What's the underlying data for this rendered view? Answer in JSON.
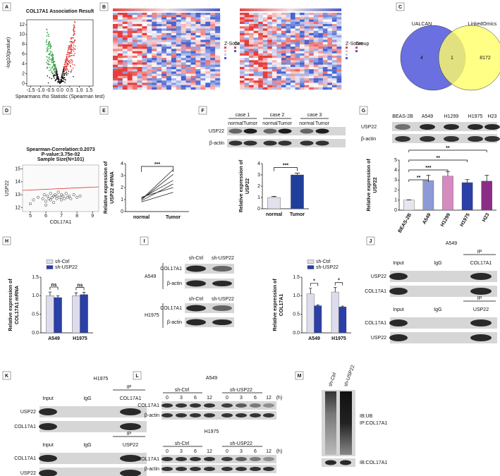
{
  "panels": [
    "A",
    "B",
    "C",
    "D",
    "E",
    "F",
    "G",
    "H",
    "I",
    "J",
    "K",
    "L",
    "M"
  ],
  "heatmap": {
    "legend_labels": [
      "Z-Score",
      "Group"
    ]
  },
  "venn": {
    "sets": [
      "UALCAN",
      "LinkedOmics"
    ],
    "counts": [
      4,
      1,
      8172
    ]
  },
  "blots": {
    "F": {
      "cases": [
        "case 1",
        "case 2",
        "case 3"
      ],
      "groups": [
        "normal",
        "Tumor"
      ],
      "rows": [
        "USP22",
        "β-actin"
      ]
    },
    "G": {
      "lines": [
        "BEAS-2B",
        "A549",
        "H1299",
        "H1975",
        "H23"
      ],
      "rows": [
        "USP22",
        "β-actin"
      ]
    },
    "I": {
      "groups": [
        "sh-Ctrl",
        "sh-USP22"
      ],
      "cells": [
        "A549",
        "H1975"
      ],
      "rows": [
        "COL17A1",
        "β-actin"
      ]
    },
    "J": {
      "title": "A549",
      "blocks": [
        {
          "ip": "IP",
          "lanes": [
            "Input",
            "IgG",
            "COL17A1"
          ],
          "rows": [
            "USP22",
            "COL17A1"
          ]
        },
        {
          "ip": "IP",
          "lanes": [
            "Input",
            "IgG",
            "USP22"
          ],
          "rows": [
            "COL17A1",
            "USP22"
          ]
        }
      ]
    },
    "K": {
      "title": "H1975",
      "blocks": [
        {
          "ip": "IP",
          "lanes": [
            "Input",
            "IgG",
            "COL17A1"
          ],
          "rows": [
            "USP22",
            "COL17A1"
          ]
        },
        {
          "ip": "IP",
          "lanes": [
            "Input",
            "IgG",
            "USP22"
          ],
          "rows": [
            "COL17A1",
            "USP22"
          ]
        }
      ]
    },
    "L": {
      "blocks": [
        {
          "title": "A549",
          "groups": [
            "sh-Ctrl",
            "sh-USP22"
          ],
          "times": [
            0,
            3,
            6,
            12,
            0,
            3,
            6,
            12
          ],
          "unit": "(h)",
          "rows": [
            "COL17A1",
            "β-actin"
          ]
        },
        {
          "title": "H1975",
          "groups": [
            "sh-Ctrl",
            "sh-USP22"
          ],
          "times": [
            0,
            3,
            6,
            12,
            0,
            3,
            6,
            12
          ],
          "unit": "(h)",
          "rows": [
            "COL17A1",
            "β-actin"
          ]
        }
      ]
    },
    "M": {
      "lanes": [
        "sh-Ctrl",
        "sh-USP22"
      ],
      "labels": [
        "IB:UB",
        "IP:COL17A1"
      ],
      "bottom": "IB:COL17A1"
    }
  },
  "chart_data": [
    {
      "type": "volcano",
      "title": "COL17A1 Association Result",
      "xlabel": "Spearmans rho Statistic (Spearman test)",
      "ylabel": "-log10(pvalue)",
      "xlim": [
        -1.7,
        1.7
      ],
      "xticks": [
        -1.5,
        {
          "value": -1,
          "label": "-1.0"
        },
        -0.5,
        {
          "value": 0,
          "label": "0.0"
        },
        0.5,
        {
          "value": 1,
          "label": "1.0"
        },
        1.5
      ],
      "ylim": [
        -0.5,
        13
      ],
      "yticks": [
        0,
        2,
        4,
        6,
        8,
        10,
        12
      ]
    },
    {
      "type": "scatter",
      "title": "Spearman-Correlation:0.2073",
      "annotations": [
        "P-value:3.75e-02",
        "Sample Size(N=101)"
      ],
      "xlabel": "COL17A1",
      "ylabel": "USP22",
      "xlim": [
        4.5,
        9.4
      ],
      "xticks": [
        5,
        6,
        7,
        8,
        9
      ],
      "ylim": [
        11.7,
        15.3
      ],
      "yticks": [
        12,
        13,
        14,
        15
      ],
      "x": [
        5.2,
        5.5,
        5.8,
        5.9,
        6.0,
        6.1,
        6.2,
        6.3,
        6.3,
        6.4,
        6.5,
        6.5,
        6.6,
        6.7,
        6.7,
        6.8,
        6.9,
        7.0,
        7.0,
        7.1,
        7.2,
        7.3,
        7.4,
        7.5,
        7.6,
        7.8,
        8.0,
        8.2,
        5.0,
        6.0
      ],
      "values": [
        12.6,
        12.8,
        12.7,
        13.0,
        12.5,
        12.9,
        12.7,
        13.1,
        12.6,
        12.8,
        12.9,
        12.4,
        13.0,
        12.7,
        12.9,
        13.2,
        12.8,
        12.6,
        13.0,
        12.9,
        12.7,
        13.1,
        12.8,
        12.9,
        12.7,
        13.0,
        12.8,
        12.9,
        12.3,
        12.2
      ]
    },
    {
      "type": "line",
      "ylabel": [
        "Relative expression of",
        "USP22 mRNA"
      ],
      "categories": [
        "normal",
        "Tumor"
      ],
      "ylim": [
        0,
        4
      ],
      "yticks": [
        0,
        1,
        2,
        3,
        4
      ],
      "color": "#222222",
      "annotations": [
        "***"
      ],
      "series": [
        {
          "values": [
            1.0,
            3.1
          ]
        },
        {
          "values": [
            1.1,
            2.6
          ]
        },
        {
          "values": [
            0.9,
            2.3
          ]
        },
        {
          "values": [
            1.0,
            3.5
          ]
        },
        {
          "values": [
            0.8,
            1.6
          ]
        },
        {
          "values": [
            1.2,
            2.0
          ]
        }
      ]
    },
    {
      "type": "bar",
      "ylabel": [
        "Relative expression of",
        "USP22"
      ],
      "categories": [
        "normal",
        "Tumor"
      ],
      "values": [
        1.0,
        3.0
      ],
      "errors": [
        0.1,
        0.15
      ],
      "colors": [
        "#e2e2ec",
        "#1f3f9a"
      ],
      "ylim": [
        0,
        4
      ],
      "yticks": [
        0,
        1,
        2,
        3,
        4
      ],
      "annotations": [
        "***"
      ]
    },
    {
      "type": "bar",
      "ylabel": [
        "Relative expression of",
        "USP22"
      ],
      "categories": [
        "BEAS-2B",
        "A549",
        "H1299",
        "H1975",
        "H23"
      ],
      "values": [
        1.0,
        2.95,
        3.4,
        2.75,
        2.9
      ],
      "errors": [
        0.03,
        0.55,
        0.45,
        0.3,
        0.6
      ],
      "colors": [
        "#e6e6f0",
        "#8d9ad6",
        "#d58ac0",
        "#2a3fa8",
        "#8b2d86"
      ],
      "ylim": [
        0,
        5
      ],
      "yticks": [
        0,
        1,
        2,
        3,
        4,
        5
      ],
      "annotations": [
        "**",
        "***",
        "**",
        "**"
      ]
    },
    {
      "type": "bar",
      "ylabel": [
        "Relative expression of",
        "COL17A1 mRNA"
      ],
      "categories": [
        "A549",
        "H1975"
      ],
      "ylim": [
        0,
        1.5
      ],
      "yticks": [
        {
          "value": 0,
          "label": "0.0"
        },
        0.5,
        {
          "value": 1,
          "label": "1.0"
        },
        1.5
      ],
      "annotations": [
        "ns",
        "ns"
      ],
      "series": [
        {
          "name": "sh-Ctrl",
          "color": "#dcdcec",
          "values": [
            1.0,
            1.0
          ],
          "errors": [
            0.1,
            0.08
          ]
        },
        {
          "name": "sh-USP22",
          "color": "#2a3fa8",
          "values": [
            0.95,
            1.03
          ],
          "errors": [
            0.05,
            0.06
          ]
        }
      ]
    },
    {
      "type": "bar",
      "ylabel": [
        "Relative expression of",
        "COL17A1"
      ],
      "categories": [
        "A549",
        "H1975"
      ],
      "ylim": [
        0,
        1.5
      ],
      "yticks": [
        {
          "value": 0,
          "label": "0.0"
        },
        0.5,
        {
          "value": 1,
          "label": "1.0"
        },
        1.5
      ],
      "annotations": [
        "*",
        "*"
      ],
      "series": [
        {
          "name": "sh-Ctrl",
          "color": "#dcdcec",
          "values": [
            1.05,
            1.1
          ],
          "errors": [
            0.15,
            0.12
          ]
        },
        {
          "name": "sh-USP22",
          "color": "#2a3fa8",
          "values": [
            0.73,
            0.7
          ],
          "errors": [
            0.02,
            0.02
          ]
        }
      ]
    }
  ]
}
